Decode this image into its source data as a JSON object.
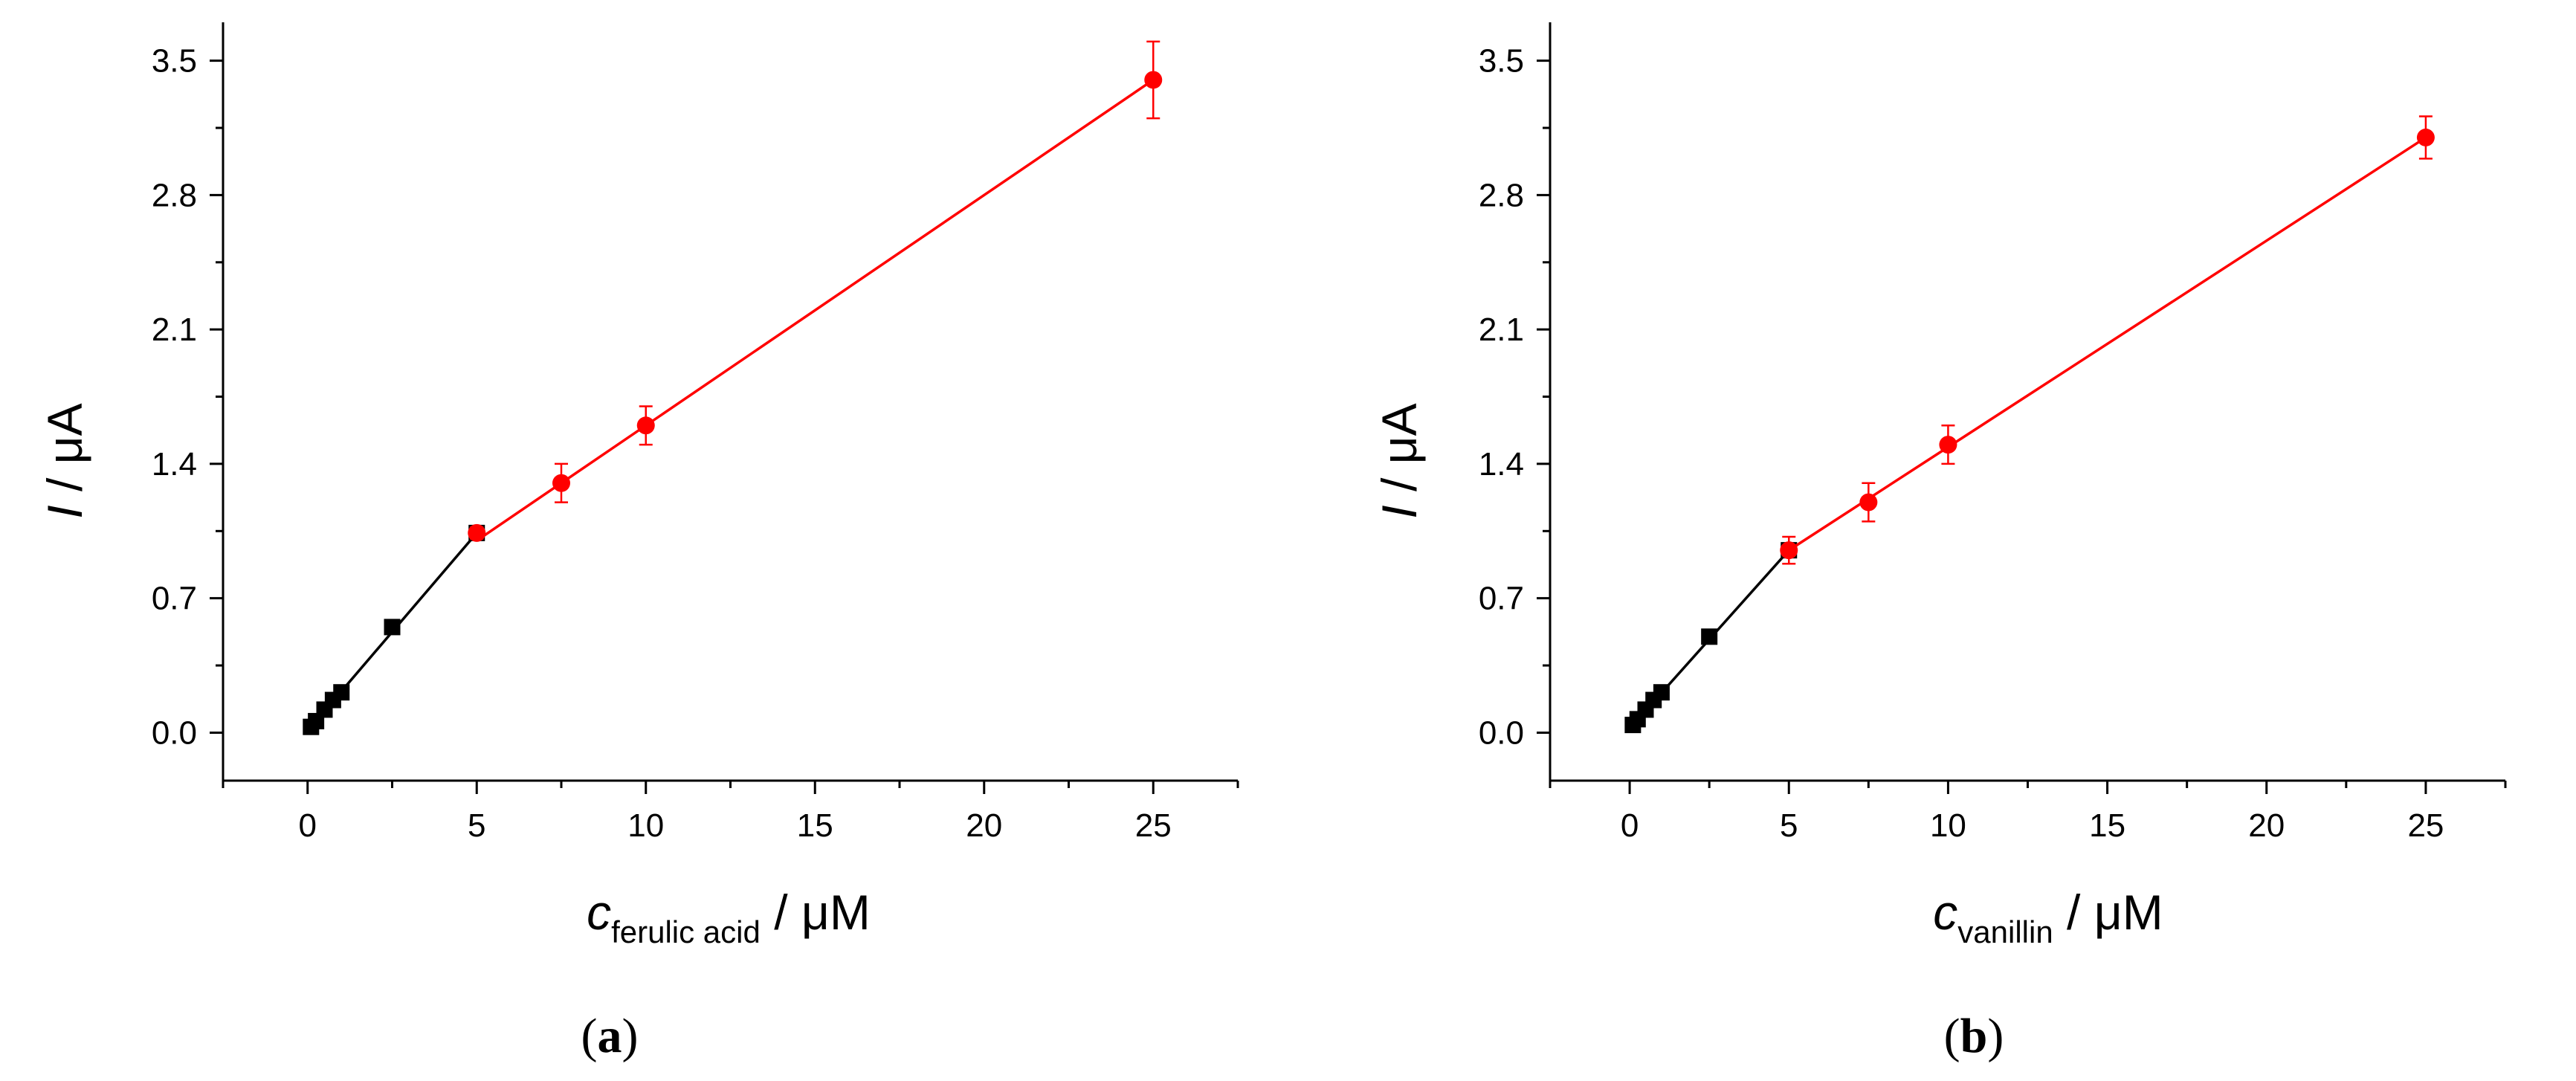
{
  "panels": [
    {
      "label": "(a)",
      "label_letter": "a",
      "ylabel_var": "I",
      "ylabel_unit": " / μA",
      "xlabel_var": "c",
      "xlabel_sub": "ferulic acid",
      "xlabel_unit": " / μM"
    },
    {
      "label": "(b)",
      "label_letter": "b",
      "ylabel_var": "I",
      "ylabel_unit": " / μA",
      "xlabel_var": "c",
      "xlabel_sub": "vanillin",
      "xlabel_unit": " / μM"
    }
  ],
  "chart_data": [
    {
      "type": "scatter",
      "xlim": [
        -2.5,
        27.5
      ],
      "ylim": [
        -0.25,
        3.7
      ],
      "xticks": [
        0,
        5,
        10,
        15,
        20,
        25
      ],
      "yticks": [
        0.0,
        0.7,
        1.4,
        2.1,
        2.8,
        3.5
      ],
      "ytick_labels": [
        "0.0",
        "0.7",
        "1.4",
        "2.1",
        "2.8",
        "3.5"
      ],
      "grid": false,
      "series": [
        {
          "color": "#000000",
          "marker": "square",
          "x": [
            0.1,
            0.25,
            0.5,
            0.75,
            1.0,
            2.5,
            5.0
          ],
          "y": [
            0.03,
            0.06,
            0.12,
            0.17,
            0.21,
            0.55,
            1.04
          ],
          "fit": [
            [
              0.1,
              0.03
            ],
            [
              5.0,
              1.04
            ]
          ]
        },
        {
          "color": "#ff0000",
          "marker": "circle",
          "x": [
            5.0,
            7.5,
            10.0,
            25.0
          ],
          "y": [
            1.04,
            1.3,
            1.6,
            3.4
          ],
          "err": [
            0.03,
            0.1,
            0.1,
            0.2
          ],
          "fit": [
            [
              5.0,
              1.0
            ],
            [
              25.0,
              3.4
            ]
          ]
        }
      ]
    },
    {
      "type": "scatter",
      "xlim": [
        -2.5,
        27.5
      ],
      "ylim": [
        -0.25,
        3.7
      ],
      "xticks": [
        0,
        5,
        10,
        15,
        20,
        25
      ],
      "yticks": [
        0.0,
        0.7,
        1.4,
        2.1,
        2.8,
        3.5
      ],
      "ytick_labels": [
        "0.0",
        "0.7",
        "1.4",
        "2.1",
        "2.8",
        "3.5"
      ],
      "grid": false,
      "series": [
        {
          "color": "#000000",
          "marker": "square",
          "x": [
            0.1,
            0.25,
            0.5,
            0.75,
            1.0,
            2.5,
            5.0
          ],
          "y": [
            0.04,
            0.07,
            0.12,
            0.17,
            0.21,
            0.5,
            0.95
          ],
          "fit": [
            [
              0.1,
              0.04
            ],
            [
              5.0,
              0.95
            ]
          ]
        },
        {
          "color": "#ff0000",
          "marker": "circle",
          "x": [
            5.0,
            7.5,
            10.0,
            25.0
          ],
          "y": [
            0.95,
            1.2,
            1.5,
            3.1
          ],
          "err": [
            0.07,
            0.1,
            0.1,
            0.11
          ],
          "fit": [
            [
              5.0,
              0.95
            ],
            [
              25.0,
              3.1
            ]
          ]
        }
      ]
    }
  ]
}
